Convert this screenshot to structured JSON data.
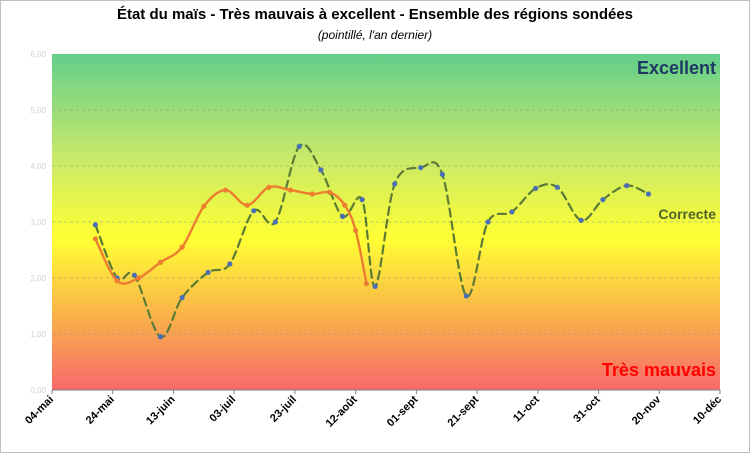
{
  "chart_data": {
    "type": "line",
    "title": "État du maïs - Très mauvais à excellent - Ensemble des régions sondées",
    "subtitle": "(pointillé, l'an dernier)",
    "x_ticks": [
      "04-mai",
      "24-mai",
      "13-juin",
      "03-juil",
      "23-juil",
      "12-août",
      "01-sept",
      "21-sept",
      "11-oct",
      "31-oct",
      "20-nov",
      "10-déc"
    ],
    "ylim": [
      0,
      6
    ],
    "grid": true,
    "band_labels": {
      "top": "Excellent",
      "middle": "Correcte",
      "bottom": "Très mauvais"
    },
    "colors": {
      "current_line": "#ed7d31",
      "last_year_line": "#5b7a35",
      "marker": "#4a6fb5",
      "top_label": "#1f3864",
      "middle_label": "#4f6228",
      "bottom_label": "#ff0000",
      "bg_top": "#63cf8a",
      "bg_upper": "#c6e86b",
      "bg_mid": "#ffff33",
      "bg_lower": "#f9b24a",
      "bg_bottom": "#f8696b"
    },
    "series": [
      {
        "style": "solid",
        "points": [
          [
            20,
            2.7
          ],
          [
            30,
            1.95
          ],
          [
            40,
            2.0
          ],
          [
            50,
            2.28
          ],
          [
            60,
            2.55
          ],
          [
            70,
            3.28
          ],
          [
            80,
            3.57
          ],
          [
            90,
            3.3
          ],
          [
            100,
            3.62
          ],
          [
            110,
            3.57
          ],
          [
            120,
            3.5
          ],
          [
            128,
            3.53
          ],
          [
            135,
            3.3
          ],
          [
            140,
            2.85
          ],
          [
            145,
            1.9
          ]
        ]
      },
      {
        "style": "dashed",
        "points": [
          [
            20,
            2.95
          ],
          [
            30,
            2.0
          ],
          [
            38,
            2.05
          ],
          [
            50,
            0.95
          ],
          [
            60,
            1.65
          ],
          [
            72,
            2.1
          ],
          [
            82,
            2.25
          ],
          [
            93,
            3.2
          ],
          [
            103,
            3.0
          ],
          [
            114,
            4.35
          ],
          [
            124,
            3.93
          ],
          [
            134,
            3.1
          ],
          [
            143,
            3.4
          ],
          [
            149,
            1.85
          ],
          [
            158,
            3.68
          ],
          [
            170,
            3.97
          ],
          [
            180,
            3.85
          ],
          [
            191,
            1.68
          ],
          [
            201,
            3.0
          ],
          [
            212,
            3.18
          ],
          [
            223,
            3.6
          ],
          [
            233,
            3.62
          ],
          [
            244,
            3.03
          ],
          [
            254,
            3.4
          ],
          [
            265,
            3.65
          ],
          [
            275,
            3.5
          ]
        ]
      }
    ]
  }
}
